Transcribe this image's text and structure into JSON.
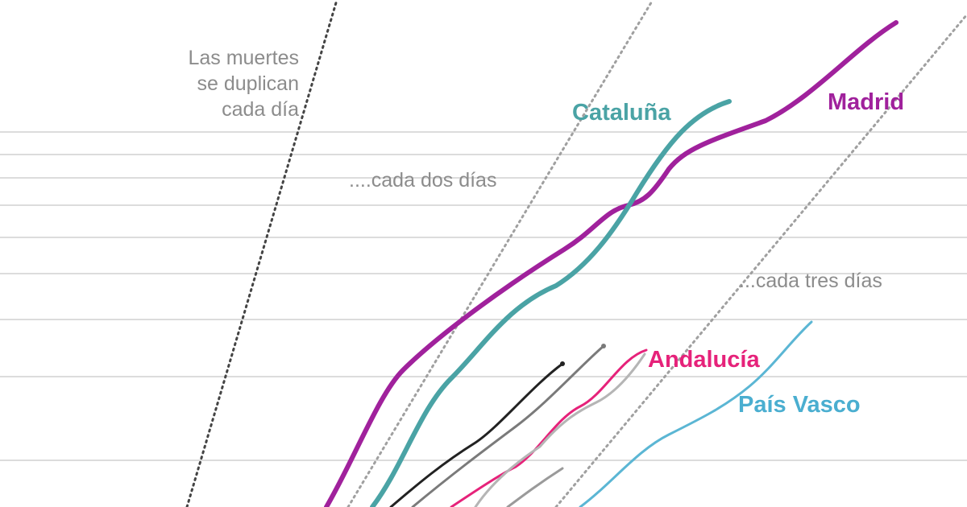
{
  "chart_data": {
    "type": "line",
    "y_scale": "log",
    "grid": true,
    "reference_lines": [
      {
        "id": "doubling-1",
        "label_lines": [
          "Las muertes",
          "se duplican",
          "cada día"
        ]
      },
      {
        "id": "doubling-2",
        "label_lines": [
          "....cada dos días"
        ]
      },
      {
        "id": "doubling-3",
        "label_lines": [
          "...cada tres días"
        ]
      }
    ],
    "series": [
      {
        "id": "madrid",
        "name": "Madrid",
        "color": "#a0219c",
        "width": 6
      },
      {
        "id": "cataluna",
        "name": "Cataluña",
        "color": "#4aa3a5",
        "width": 6
      },
      {
        "id": "andalucia",
        "name": "Andalucía",
        "color": "#e6227a",
        "width": 3
      },
      {
        "id": "pais-vasco",
        "name": "País Vasco",
        "color": "#5bb6d4",
        "width": 3
      },
      {
        "id": "unnamed-black",
        "name": "",
        "color": "#222222",
        "width": 3
      },
      {
        "id": "unnamed-grey",
        "name": "",
        "color": "#7a7a7a",
        "width": 3
      },
      {
        "id": "unnamed-lightgrey",
        "name": "",
        "color": "#b5b5b5",
        "width": 3
      },
      {
        "id": "unnamed-midgrey",
        "name": "",
        "color": "#9a9a9a",
        "width": 3
      }
    ]
  }
}
